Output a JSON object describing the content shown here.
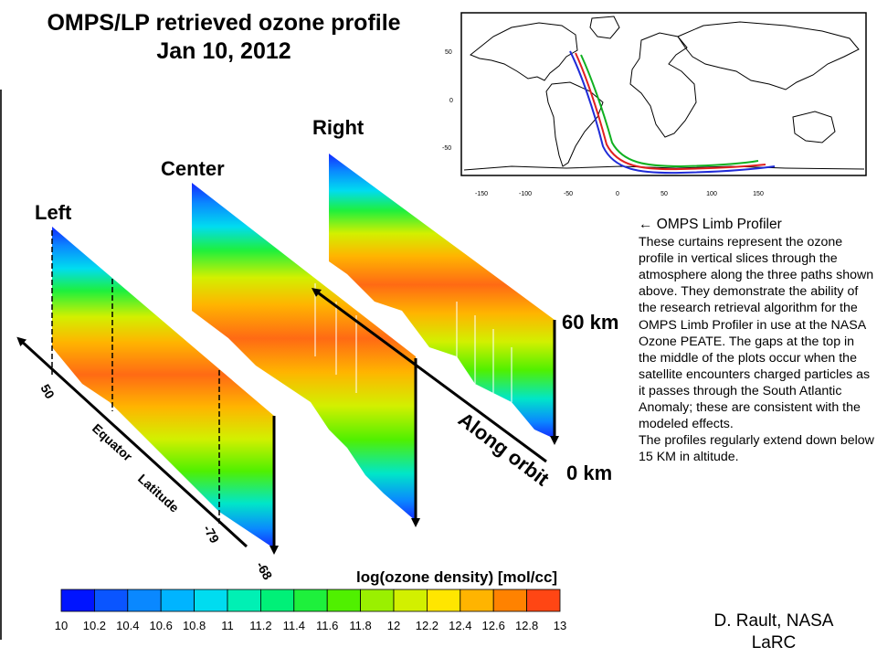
{
  "title": {
    "line1": "OMPS/LP retrieved ozone profile",
    "line2": "Jan 10, 2012"
  },
  "curtains": {
    "left": "Left",
    "center": "Center",
    "right": "Right"
  },
  "altitude": {
    "top": "60 km",
    "bottom": "0 km"
  },
  "along_orbit": "Along orbit",
  "latitude_axis": {
    "label": "Latitude",
    "equator": "Equator",
    "lat_50": "50",
    "lat_minus79": "-79",
    "lat_minus68": "-68"
  },
  "map": {
    "y_ticks": [
      "50",
      "0",
      "-50"
    ],
    "x_ticks": [
      "-150",
      "-100",
      "-50",
      "0",
      "50",
      "100",
      "150"
    ],
    "track_colors": [
      "#1f2bd8",
      "#e02020",
      "#10b020"
    ]
  },
  "colorbar": {
    "title": "log(ozone density) [mol/cc]",
    "ticks": [
      "10",
      "10.2",
      "10.4",
      "10.6",
      "10.8",
      "11",
      "11.2",
      "11.4",
      "11.6",
      "11.8",
      "12",
      "12.2",
      "12.4",
      "12.6",
      "12.8",
      "13"
    ],
    "colors": [
      "#0014ff",
      "#0a55ff",
      "#0a88ff",
      "#00b4ff",
      "#00dcf0",
      "#00f0b4",
      "#00f078",
      "#1ef03c",
      "#50f000",
      "#9af000",
      "#d2f000",
      "#ffe600",
      "#ffb400",
      "#ff8200",
      "#ff4614"
    ]
  },
  "description": {
    "heading": "← OMPS Limb Profiler",
    "para1": "These curtains represent the ozone profile in vertical slices through the atmosphere along the three paths shown above. They demonstrate the ability of the research retrieval algorithm for the OMPS Limb Profiler in use at the NASA Ozone PEATE.  The gaps at the top in the middle of the plots occur when the satellite encounters charged particles as it passes through the South Atlantic Anomaly; these are consistent with the modeled effects.",
    "para2": "The profiles regularly extend down below 15 KM in altitude."
  },
  "credit": {
    "line1": "D. Rault, NASA",
    "line2": "LaRC"
  }
}
